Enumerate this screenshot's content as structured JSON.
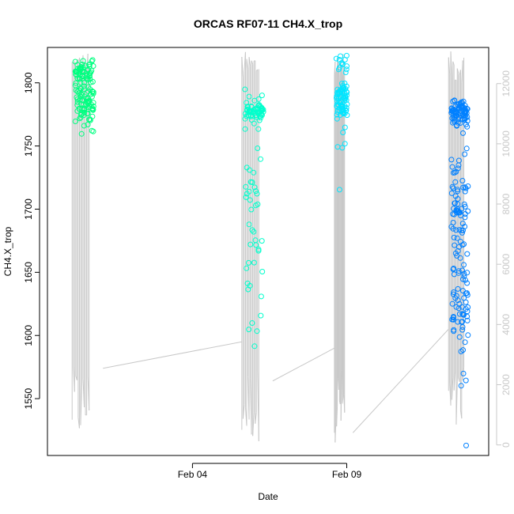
{
  "chart_data": {
    "type": "scatter",
    "title": "ORCAS RF07-11 CH4.X_trop",
    "xlabel": "Date",
    "ylabel": "CH4.X_trop",
    "x_ticks": [
      "Feb 04",
      "Feb 09"
    ],
    "x_tick_days": [
      4,
      9
    ],
    "xlim_days": [
      -0.7,
      13.6
    ],
    "ylim": [
      1505,
      1828
    ],
    "y_ticks": [
      1550,
      1600,
      1650,
      1700,
      1750,
      1800
    ],
    "y2_ticks": [
      0,
      2000,
      4000,
      6000,
      8000,
      10000,
      12000
    ],
    "y2lim": [
      -350,
      13200
    ],
    "series_colors": {
      "flight1": "#00ff80",
      "flight2": "#00ffcc",
      "flight3": "#00e5ff",
      "flight4": "#0080ff",
      "altitude": "#c8c8c8"
    },
    "flights": [
      {
        "x_start": 0.1,
        "x_end": 1.1,
        "ch4_clusters": [
          {
            "center": 1790,
            "spread": 18,
            "count": 110
          },
          {
            "center": 1810,
            "spread": 6,
            "count": 25
          }
        ],
        "color": "#00ff80"
      },
      {
        "x_start": 5.6,
        "x_end": 6.6,
        "ch4_clusters": [
          {
            "center": 1778,
            "spread": 6,
            "count": 60
          },
          {
            "center": 1690,
            "spread": 55,
            "count": 40
          },
          {
            "center": 1610,
            "spread": 10,
            "count": 4
          }
        ],
        "color": "#00ffcc"
      },
      {
        "x_start": 8.6,
        "x_end": 9.2,
        "ch4_clusters": [
          {
            "center": 1785,
            "spread": 12,
            "count": 70
          },
          {
            "center": 1815,
            "spread": 6,
            "count": 12
          },
          {
            "center": 1750,
            "spread": 4,
            "count": 3
          },
          {
            "center": 1715,
            "spread": 1,
            "count": 1
          }
        ],
        "color": "#00e5ff"
      },
      {
        "x_start": 12.3,
        "x_end": 13.2,
        "ch4_clusters": [
          {
            "center": 1776,
            "spread": 6,
            "count": 80
          },
          {
            "center": 1700,
            "spread": 45,
            "count": 70
          },
          {
            "center": 1620,
            "spread": 30,
            "count": 60
          },
          {
            "center": 1512,
            "spread": 1,
            "count": 1
          }
        ],
        "color": "#0080ff"
      }
    ]
  }
}
